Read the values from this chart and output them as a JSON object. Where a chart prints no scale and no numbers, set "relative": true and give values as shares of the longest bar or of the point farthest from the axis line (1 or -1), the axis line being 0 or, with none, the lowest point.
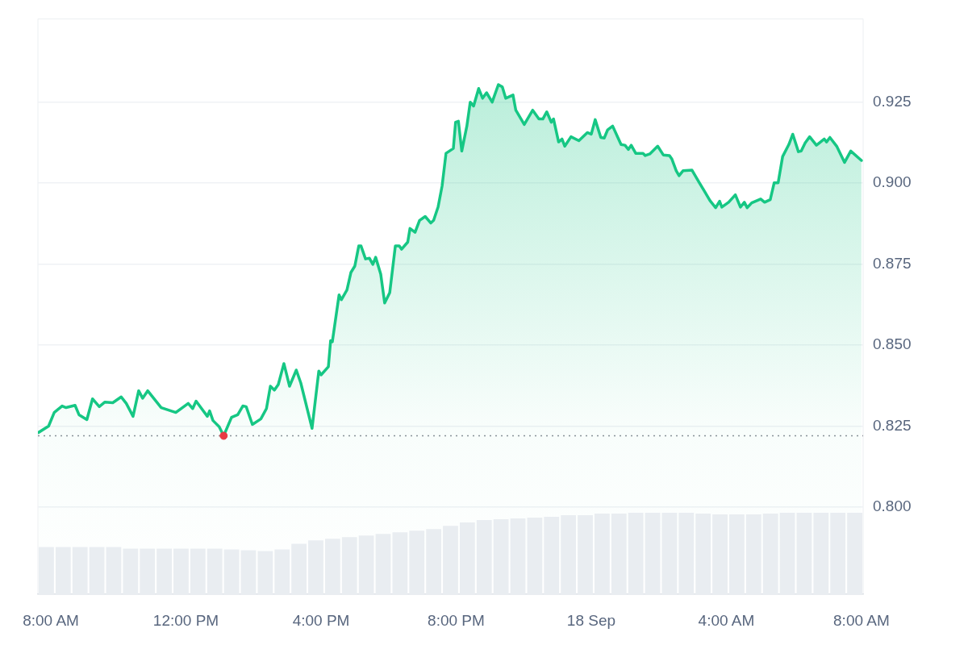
{
  "chart_data": [
    {
      "type": "area",
      "xlim": [
        "--09-17T07:37",
        "--09-18T08:03"
      ],
      "ylim": [
        0.7731,
        0.9507
      ],
      "xticks": [
        {
          "value": "--09-17T08:00",
          "label": "8:00 AM"
        },
        {
          "value": "--09-17T12:00",
          "label": "12:00 PM"
        },
        {
          "value": "--09-17T16:00",
          "label": "4:00 PM"
        },
        {
          "value": "--09-17T20:00",
          "label": "8:00 PM"
        },
        {
          "value": "--09-18T00:00",
          "label": "18 Sep"
        },
        {
          "value": "--09-18T04:00",
          "label": "4:00 AM"
        },
        {
          "value": "--09-18T08:00",
          "label": "8:00 AM"
        }
      ],
      "yticks": [
        {
          "value": 0.8,
          "label": "0.800"
        },
        0.825,
        {
          "value": 0.85,
          "label": "0.850"
        },
        0.875,
        {
          "value": 0.9,
          "label": "0.900"
        },
        0.925
      ],
      "grid": "y",
      "ref_lines": [
        {
          "axis": "y",
          "value": 0.822,
          "line_style": "dotted",
          "color": "#8a8f98"
        }
      ],
      "series": [
        {
          "color": "#16c784",
          "x": [
            "--09-17T07:38",
            "--09-17T07:56",
            "--09-17T08:06",
            "--09-17T08:20",
            "--09-17T08:27",
            "--09-17T08:43",
            "--09-17T08:50",
            "--09-17T09:04",
            "--09-17T09:14",
            "--09-17T09:26",
            "--09-17T09:36",
            "--09-17T09:50",
            "--09-17T10:05",
            "--09-17T10:14",
            "--09-17T10:26",
            "--09-17T10:36",
            "--09-17T10:43",
            "--09-17T10:52",
            "--09-17T11:16",
            "--09-17T11:42",
            "--09-17T12:04",
            "--09-17T12:12",
            "--09-17T12:18",
            "--09-17T12:38",
            "--09-17T12:42",
            "--09-17T12:48",
            "--09-17T12:59",
            "--09-17T13:07",
            "--09-17T13:21",
            "--09-17T13:32",
            "--09-17T13:41",
            "--09-17T13:47",
            "--09-17T13:58",
            "--09-17T14:13",
            "--09-17T14:23",
            "--09-17T14:30",
            "--09-17T14:37",
            "--09-17T14:44",
            "--09-17T14:54",
            "--09-17T15:04",
            "--09-17T15:16",
            "--09-17T15:24",
            "--09-17T15:44",
            "--09-17T15:56",
            "--09-17T16:00",
            "--09-17T16:13",
            "--09-17T16:17",
            "--09-17T16:20",
            "--09-17T16:32",
            "--09-17T16:36",
            "--09-17T16:46",
            "--09-17T16:53",
            "--09-17T17:00",
            "--09-17T17:07",
            "--09-17T17:11",
            "--09-17T17:19",
            "--09-17T17:26",
            "--09-17T17:32",
            "--09-17T17:37",
            "--09-17T17:46",
            "--09-17T17:53",
            "--09-17T18:02",
            "--09-17T18:12",
            "--09-17T18:19",
            "--09-17T18:23",
            "--09-17T18:34",
            "--09-17T18:38",
            "--09-17T18:47",
            "--09-17T18:55",
            "--09-17T19:05",
            "--09-17T19:15",
            "--09-17T19:20",
            "--09-17T19:28",
            "--09-17T19:35",
            "--09-17T19:42",
            "--09-17T19:55",
            "--09-17T19:59",
            "--09-17T20:04",
            "--09-17T20:10",
            "--09-17T20:19",
            "--09-17T20:25",
            "--09-17T20:31",
            "--09-17T20:40",
            "--09-17T20:47",
            "--09-17T20:54",
            "--09-17T21:04",
            "--09-17T21:15",
            "--09-17T21:22",
            "--09-17T21:28",
            "--09-17T21:41",
            "--09-17T21:46",
            "--09-17T22:01",
            "--09-17T22:16",
            "--09-17T22:27",
            "--09-17T22:34",
            "--09-17T22:41",
            "--09-17T22:49",
            "--09-17T22:53",
            "--09-17T23:02",
            "--09-17T23:08",
            "--09-17T23:13",
            "--09-17T23:24",
            "--09-17T23:38",
            "--09-17T23:53",
            "--09-18T00:00",
            "--09-18T00:07",
            "--09-18T00:17",
            "--09-18T00:23",
            "--09-18T00:29",
            "--09-18T00:38",
            "--09-18T00:53",
            "--09-18T01:00",
            "--09-18T01:06",
            "--09-18T01:11",
            "--09-18T01:19",
            "--09-18T01:32",
            "--09-18T01:36",
            "--09-18T01:44",
            "--09-18T01:58",
            "--09-18T02:08",
            "--09-18T02:19",
            "--09-18T02:23",
            "--09-18T02:31",
            "--09-18T02:36",
            "--09-18T02:43",
            "--09-18T02:59",
            "--09-18T03:12",
            "--09-18T03:20",
            "--09-18T03:31",
            "--09-18T03:41",
            "--09-18T03:48",
            "--09-18T03:52",
            "--09-18T04:04",
            "--09-18T04:16",
            "--09-18T04:25",
            "--09-18T04:32",
            "--09-18T04:37",
            "--09-18T04:45",
            "--09-18T05:01",
            "--09-18T05:08",
            "--09-18T05:18",
            "--09-18T05:25",
            "--09-18T05:32",
            "--09-18T05:40",
            "--09-18T05:51",
            "--09-18T05:58",
            "--09-18T06:08",
            "--09-18T06:13",
            "--09-18T06:20",
            "--09-18T06:28",
            "--09-18T06:40",
            "--09-18T06:54",
            "--09-18T06:58",
            "--09-18T07:04",
            "--09-18T07:16",
            "--09-18T07:30",
            "--09-18T07:41",
            "--09-18T08:00"
          ],
          "values": [
            0.823,
            0.825,
            0.8292,
            0.8312,
            0.8307,
            0.8314,
            0.8285,
            0.827,
            0.8334,
            0.831,
            0.8324,
            0.8322,
            0.834,
            0.832,
            0.828,
            0.8359,
            0.8336,
            0.8359,
            0.8307,
            0.8292,
            0.832,
            0.8304,
            0.8327,
            0.828,
            0.8297,
            0.8267,
            0.8248,
            0.822,
            0.8277,
            0.8285,
            0.8312,
            0.831,
            0.8255,
            0.8272,
            0.8304,
            0.8373,
            0.8361,
            0.8378,
            0.8443,
            0.8373,
            0.8423,
            0.8383,
            0.8243,
            0.842,
            0.8408,
            0.8433,
            0.8514,
            0.851,
            0.8655,
            0.864,
            0.867,
            0.8724,
            0.8744,
            0.8806,
            0.8806,
            0.8766,
            0.8768,
            0.8749,
            0.8771,
            0.8719,
            0.863,
            0.8662,
            0.8806,
            0.8806,
            0.8796,
            0.8818,
            0.886,
            0.8848,
            0.8885,
            0.8897,
            0.8877,
            0.8885,
            0.8927,
            0.8991,
            0.9092,
            0.9107,
            0.9188,
            0.9191,
            0.9099,
            0.9176,
            0.925,
            0.9238,
            0.9292,
            0.9262,
            0.9279,
            0.925,
            0.9304,
            0.9297,
            0.9262,
            0.9272,
            0.9225,
            0.9181,
            0.9225,
            0.9198,
            0.9198,
            0.922,
            0.9188,
            0.9198,
            0.9127,
            0.9136,
            0.9114,
            0.9143,
            0.9131,
            0.9156,
            0.9151,
            0.9196,
            0.9141,
            0.9139,
            0.9164,
            0.9176,
            0.9119,
            0.9117,
            0.9104,
            0.9117,
            0.9092,
            0.9092,
            0.9085,
            0.909,
            0.9114,
            0.9087,
            0.9085,
            0.9075,
            0.9038,
            0.9023,
            0.9038,
            0.904,
            0.9001,
            0.8978,
            0.8946,
            0.8924,
            0.8944,
            0.8926,
            0.8941,
            0.8964,
            0.8926,
            0.8941,
            0.8924,
            0.8939,
            0.8951,
            0.8941,
            0.8949,
            0.9001,
            0.9001,
            0.9082,
            0.9119,
            0.9151,
            0.9097,
            0.9099,
            0.9124,
            0.9143,
            0.9117,
            0.9136,
            0.9127,
            0.9141,
            0.9114,
            0.9064,
            0.9099,
            0.907
          ]
        },
        {
          "type": "scatter",
          "color": "#ea3943",
          "x": [
            "--09-17T13:07"
          ],
          "values": [
            0.822
          ]
        }
      ]
    },
    {
      "type": "bar",
      "relative": true,
      "color": "#e9edf1",
      "categories": [
        null,
        null,
        null,
        null,
        null,
        null,
        null,
        null,
        null,
        null,
        null,
        null,
        null,
        null,
        null,
        null,
        null,
        null,
        null,
        null,
        null,
        null,
        null,
        null,
        null,
        null,
        null,
        null,
        null,
        null,
        null,
        null,
        null,
        null,
        null,
        null,
        null,
        null,
        null,
        null,
        null,
        null,
        null,
        null,
        null,
        null,
        null,
        null,
        null
      ],
      "values": [
        0.58,
        0.58,
        0.58,
        0.58,
        0.58,
        0.56,
        0.56,
        0.56,
        0.56,
        0.56,
        0.56,
        0.55,
        0.54,
        0.53,
        0.55,
        0.62,
        0.66,
        0.68,
        0.7,
        0.72,
        0.74,
        0.76,
        0.78,
        0.8,
        0.84,
        0.88,
        0.91,
        0.92,
        0.93,
        0.94,
        0.95,
        0.97,
        0.97,
        0.99,
        0.99,
        1,
        1,
        1,
        1,
        0.99,
        0.98,
        0.98,
        0.98,
        0.99,
        1,
        1,
        1,
        1,
        1
      ]
    }
  ]
}
